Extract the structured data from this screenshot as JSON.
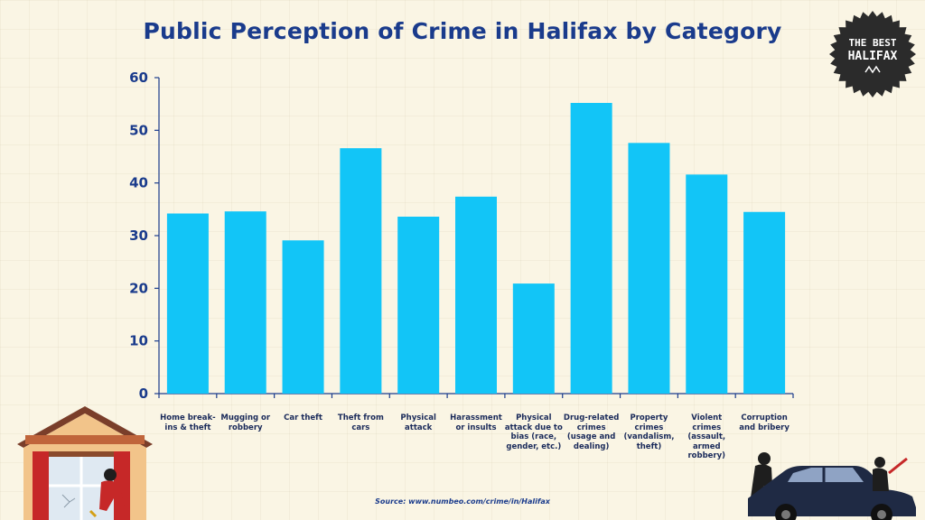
{
  "chart_data": {
    "type": "bar",
    "title": "Public Perception of Crime in Halifax by Category",
    "categories": [
      "Home break-ins & theft",
      "Mugging or robbery",
      "Car theft",
      "Theft from cars",
      "Physical attack",
      "Harassment or insults",
      "Physical attack due to bias (race, gender, etc.)",
      "Drug-related crimes (usage and dealing)",
      "Property crimes (vandalism, theft)",
      "Violent crimes (assault, armed robbery)",
      "Corruption and bribery"
    ],
    "values": [
      34.2,
      34.6,
      29.1,
      46.6,
      33.6,
      37.4,
      20.9,
      55.2,
      47.6,
      41.6,
      34.5
    ],
    "ylim": [
      0,
      60
    ],
    "yticks": [
      0,
      10,
      20,
      30,
      40,
      50,
      60
    ],
    "xlabel": "",
    "ylabel": "",
    "grid": false,
    "bar_color": "#12c5f7",
    "axis_color": "#1a3b8c"
  },
  "source": "Source: www.numbeo.com/crime/in/Halifax",
  "logo": {
    "line1": "THE BEST",
    "line2": "HALIFAX"
  }
}
